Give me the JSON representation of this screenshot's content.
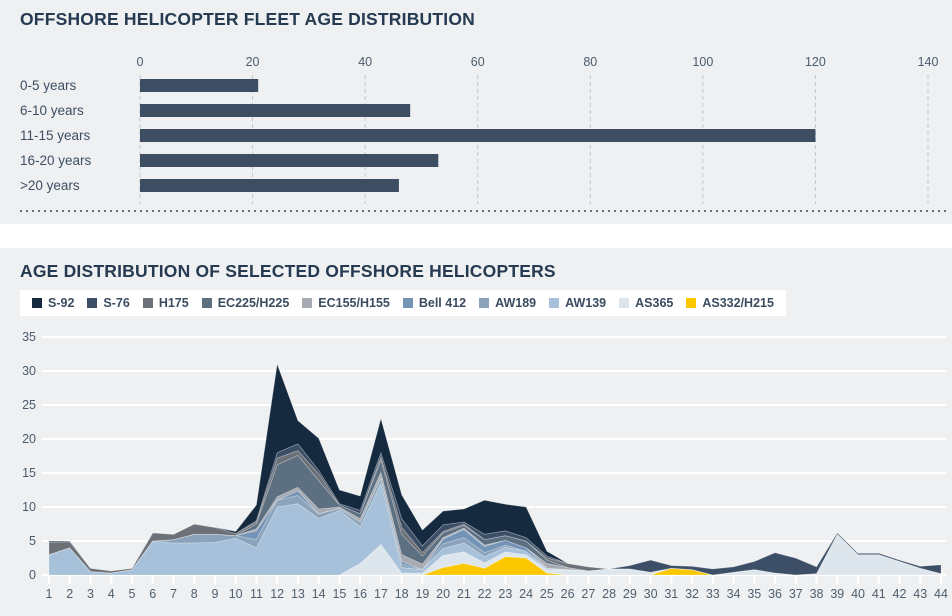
{
  "page": {
    "background": "#eef0f2"
  },
  "chart_data": [
    {
      "type": "bar",
      "orientation": "horizontal",
      "title": "OFFSHORE HELICOPTER FLEET AGE DISTRIBUTION",
      "categories": [
        "0-5 years",
        "6-10 years",
        "11-15 years",
        "16-20 years",
        ">20 years"
      ],
      "values": [
        21,
        48,
        120,
        53,
        46
      ],
      "xlim": [
        0,
        140
      ],
      "x_ticks": [
        0,
        20,
        40,
        60,
        80,
        100,
        120,
        140
      ],
      "bar_color": "#3d4e63",
      "grid": "vertical-dashed",
      "gridline_color": "#c3c8cd",
      "label_color": "#3e4e62",
      "tick_color": "#4b5b6d"
    },
    {
      "type": "area",
      "stacked": true,
      "title": "AGE DISTRIBUTION OF SELECTED OFFSHORE HELICOPTERS",
      "x": [
        1,
        2,
        3,
        4,
        5,
        6,
        7,
        8,
        9,
        10,
        11,
        12,
        13,
        14,
        15,
        16,
        17,
        18,
        19,
        20,
        21,
        22,
        23,
        24,
        25,
        26,
        27,
        28,
        29,
        30,
        31,
        32,
        33,
        34,
        35,
        36,
        37,
        38,
        39,
        40,
        41,
        42,
        43,
        44
      ],
      "ylim": [
        0,
        35
      ],
      "y_ticks": [
        0,
        5,
        10,
        15,
        20,
        25,
        30,
        35
      ],
      "grid": "horizontal-white",
      "legend_position": "top",
      "stack_order": "last-series-at-bottom, first-series (S-92) on top",
      "series": [
        {
          "name": "S-92",
          "color": "#15293f",
          "values": [
            0,
            0,
            0,
            0,
            0,
            0,
            0,
            0,
            0,
            0.3,
            2.3,
            13,
            3.4,
            4.7,
            2.0,
            2.1,
            5.0,
            3.5,
            2.3,
            2.0,
            1.9,
            5.0,
            3.9,
            4.5,
            0.7,
            0,
            0,
            0,
            0,
            0,
            0,
            0,
            0,
            0,
            0,
            0,
            0,
            0,
            0,
            0,
            0,
            0,
            0,
            0
          ]
        },
        {
          "name": "S-76",
          "color": "#3d4f66",
          "values": [
            0.2,
            0.1,
            0,
            0,
            0,
            0,
            0,
            0,
            0,
            0,
            0.2,
            0.8,
            1.0,
            0.5,
            0.2,
            0.5,
            0.6,
            1.3,
            1.0,
            1.0,
            0.3,
            0.8,
            0.7,
            0.5,
            0.3,
            0,
            0,
            0,
            0.5,
            1.8,
            0.4,
            0.5,
            0.9,
            0.8,
            1.2,
            3.0,
            2.5,
            1.0,
            0.2,
            0.2,
            0.2,
            0.2,
            0.3,
            1.3
          ]
        },
        {
          "name": "H175",
          "color": "#6c7077",
          "values": [
            1.8,
            0.9,
            0.5,
            0.3,
            0.2,
            1.2,
            0.8,
            1.5,
            1.0,
            0.3,
            0.3,
            1.0,
            0.7,
            1.0,
            0,
            0,
            0.5,
            1.0,
            0.5,
            0.2,
            0.2,
            0,
            0,
            0,
            0.3,
            0.6,
            0.6,
            0,
            0,
            0,
            0,
            0,
            0,
            0,
            0,
            0,
            0,
            0,
            0,
            0,
            0,
            0,
            0,
            0
          ]
        },
        {
          "name": "EC225/H225",
          "color": "#5d7082",
          "values": [
            0,
            0,
            0,
            0,
            0,
            0,
            0,
            0,
            0,
            0,
            0.7,
            4.7,
            4.7,
            4.2,
            0.3,
            0.7,
            1.8,
            3.0,
            1.2,
            0.7,
            0.4,
            0.8,
            0.7,
            1.0,
            0.5,
            0,
            0,
            0,
            0,
            0,
            0,
            0,
            0,
            0,
            0,
            0,
            0,
            0,
            0,
            0,
            0,
            0,
            0,
            0
          ]
        },
        {
          "name": "EC155/H155",
          "color": "#a7abb1",
          "values": [
            0,
            0,
            0,
            0,
            0,
            0,
            0,
            0,
            0,
            0,
            0.3,
            0.5,
            0.5,
            0.7,
            0.2,
            0.5,
            0.8,
            1.0,
            0.8,
            0.2,
            0.2,
            0.2,
            0,
            0,
            0.7,
            0.3,
            0,
            0,
            0,
            0,
            0,
            0,
            0,
            0,
            0,
            0,
            0,
            0,
            0,
            0,
            0,
            0,
            0,
            0
          ]
        },
        {
          "name": "Bell 412",
          "color": "#7393b7",
          "values": [
            0,
            0,
            0,
            0,
            0,
            0,
            0,
            0,
            0,
            0,
            1.3,
            0,
            0.7,
            0,
            0,
            0,
            0,
            0.4,
            0,
            0.7,
            1.2,
            0.9,
            0.7,
            0.5,
            0,
            0,
            0,
            0,
            0,
            0,
            0,
            0,
            0,
            0,
            0,
            0,
            0,
            0,
            0,
            0,
            0,
            0,
            0,
            0
          ]
        },
        {
          "name": "AW189",
          "color": "#8ba3bb",
          "values": [
            0,
            0,
            0,
            0,
            0,
            0,
            0.5,
            1.3,
            1.2,
            0.4,
            1.2,
            1.0,
            1.2,
            0.7,
            0.3,
            0.7,
            0.8,
            0.5,
            0,
            0.7,
            0.8,
            0.6,
            0.3,
            0,
            0,
            0,
            0,
            0,
            0,
            0,
            0,
            0,
            0,
            0,
            0,
            0,
            0,
            0,
            0,
            0,
            0,
            0,
            0,
            0
          ]
        },
        {
          "name": "AW139",
          "color": "#a6c1d9",
          "values": [
            3,
            4,
            0.5,
            0.3,
            0.8,
            5,
            4.7,
            4.7,
            4.8,
            5.4,
            4,
            10,
            10.5,
            8.3,
            9.5,
            5.4,
            9,
            0.8,
            0.5,
            1.0,
            1.3,
            0.9,
            0.7,
            0.5,
            0.2,
            0,
            0,
            0,
            0,
            0,
            0,
            0,
            0,
            0,
            0,
            0,
            0,
            0,
            0,
            0,
            0,
            0,
            0,
            0
          ]
        },
        {
          "name": "AS365",
          "color": "#dee6ed",
          "values": [
            0,
            0,
            0,
            0,
            0,
            0,
            0,
            0,
            0,
            0,
            0,
            0,
            0,
            0,
            0,
            1.7,
            4.5,
            0.3,
            0.3,
            1.8,
            1.7,
            0.8,
            0.7,
            0.5,
            0.5,
            0.8,
            0.6,
            0.9,
            0.9,
            0.4,
            0,
            0,
            0,
            0.4,
            0.8,
            0.3,
            0,
            0.2,
            6.0,
            3.0,
            3.0,
            2.0,
            1.0,
            0.2
          ]
        },
        {
          "name": "AS332/H215",
          "color": "#fbc800",
          "values": [
            0,
            0,
            0,
            0,
            0,
            0,
            0,
            0,
            0,
            0,
            0,
            0,
            0,
            0,
            0,
            0,
            0,
            0,
            0,
            1.1,
            1.7,
            1.0,
            2.7,
            2.5,
            0.3,
            0,
            0,
            0,
            0,
            0,
            1.0,
            0.8,
            0,
            0,
            0,
            0,
            0,
            0,
            0,
            0,
            0,
            0,
            0,
            0
          ]
        }
      ],
      "x_label_color": "#50606e",
      "y_label_color": "#4a5a6c"
    }
  ]
}
